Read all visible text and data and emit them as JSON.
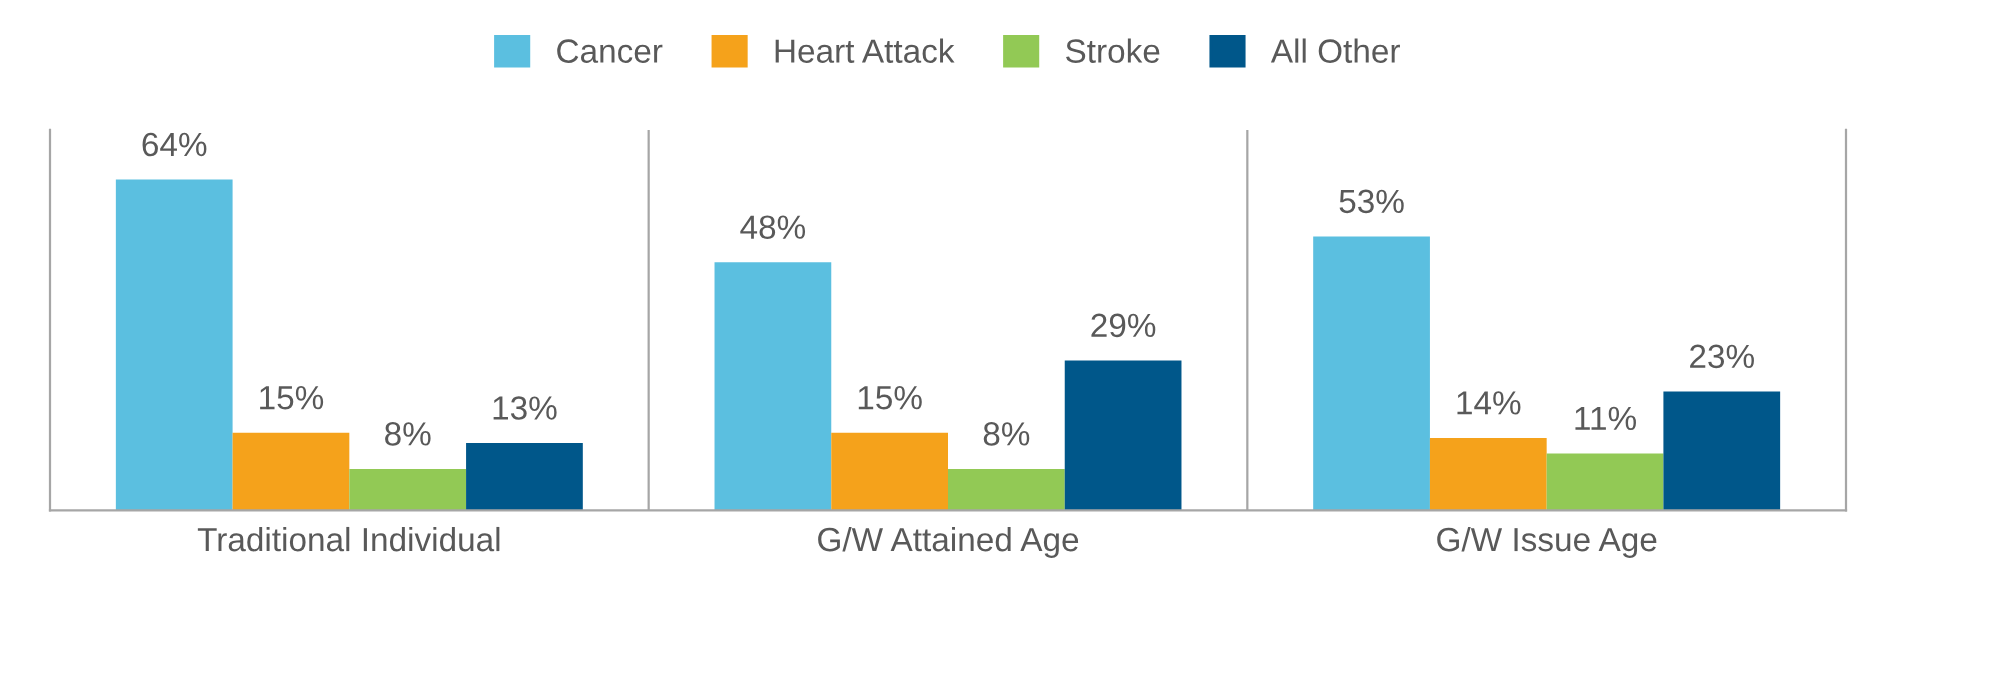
{
  "chart_data": {
    "type": "bar",
    "categories": [
      "Traditional Individual",
      "G/W Attained Age",
      "G/W Issue Age"
    ],
    "series": [
      {
        "name": "Cancer",
        "color": "#5bbfe0",
        "values": [
          64,
          48,
          53
        ],
        "value_labels": [
          "64%",
          "48%",
          "53%"
        ]
      },
      {
        "name": "Heart Attack",
        "color": "#f5a21b",
        "values": [
          15,
          15,
          14
        ],
        "value_labels": [
          "15%",
          "15%",
          "14%"
        ]
      },
      {
        "name": "Stroke",
        "color": "#92c955",
        "values": [
          8,
          8,
          11
        ],
        "value_labels": [
          "8%",
          "8%",
          "11%"
        ]
      },
      {
        "name": "All Other",
        "color": "#00578a",
        "values": [
          13,
          29,
          23
        ],
        "value_labels": [
          "13%",
          "29%",
          "23%"
        ]
      }
    ],
    "legend": "top",
    "grid": false
  }
}
